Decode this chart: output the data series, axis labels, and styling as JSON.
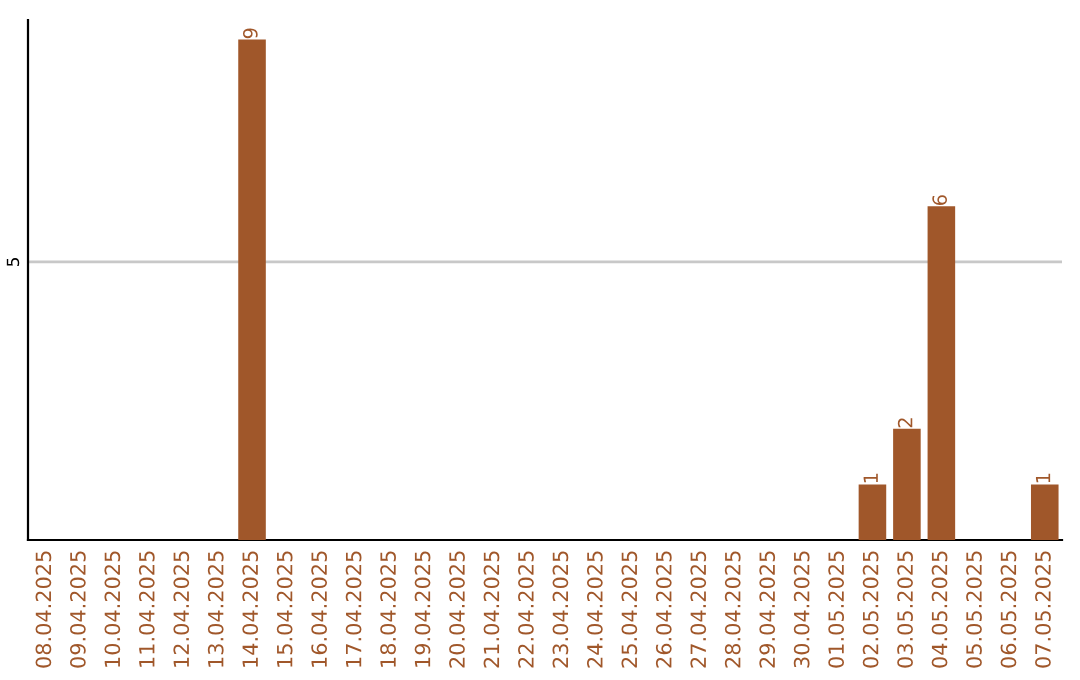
{
  "chart_data": {
    "type": "bar",
    "categories": [
      "08.04.2025",
      "09.04.2025",
      "10.04.2025",
      "11.04.2025",
      "12.04.2025",
      "13.04.2025",
      "14.04.2025",
      "15.04.2025",
      "16.04.2025",
      "17.04.2025",
      "18.04.2025",
      "19.04.2025",
      "20.04.2025",
      "21.04.2025",
      "22.04.2025",
      "23.04.2025",
      "24.04.2025",
      "25.04.2025",
      "26.04.2025",
      "27.04.2025",
      "28.04.2025",
      "29.04.2025",
      "30.04.2025",
      "01.05.2025",
      "02.05.2025",
      "03.05.2025",
      "04.05.2025",
      "05.05.2025",
      "06.05.2025",
      "07.05.2025"
    ],
    "values": [
      0,
      0,
      0,
      0,
      0,
      0,
      9,
      0,
      0,
      0,
      0,
      0,
      0,
      0,
      0,
      0,
      0,
      0,
      0,
      0,
      0,
      0,
      0,
      0,
      1,
      2,
      6,
      0,
      0,
      1
    ],
    "value_labels": [
      null,
      null,
      null,
      null,
      null,
      null,
      "9",
      null,
      null,
      null,
      null,
      null,
      null,
      null,
      null,
      null,
      null,
      null,
      null,
      null,
      null,
      null,
      null,
      null,
      "1",
      "2",
      "6",
      null,
      null,
      "1"
    ],
    "color": "#a0572a",
    "ylim": [
      0,
      9.35
    ],
    "yticks": [
      5
    ],
    "grid": "y"
  }
}
